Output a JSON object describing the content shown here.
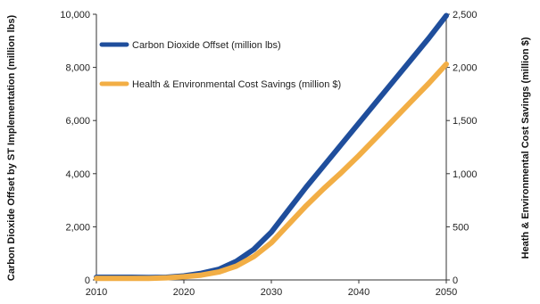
{
  "chart_data": {
    "type": "line",
    "title": "",
    "xlabel": "",
    "ylabel_left": "Carbon Dioxide Offset by ST Implementation (million lbs)",
    "ylabel_right": "Heath & Environmental Cost Savings (million $)",
    "xlim": [
      2010,
      2050
    ],
    "ylim_left": [
      0,
      10000
    ],
    "ylim_right": [
      0,
      2500
    ],
    "x_ticks": [
      "2010",
      "2020",
      "2030",
      "2040",
      "2050"
    ],
    "y_left_ticks": [
      "0",
      "2,000",
      "4,000",
      "6,000",
      "8,000",
      "10,000"
    ],
    "y_right_ticks": [
      "0",
      "500",
      "1,000",
      "1,500",
      "2,000",
      "2,500"
    ],
    "grid": false,
    "legend_position": "top-left",
    "series": [
      {
        "name": "Carbon Dioxide Offset (million lbs)",
        "axis": "left",
        "color": "#1f4e9c",
        "x": [
          2010,
          2012,
          2014,
          2016,
          2018,
          2020,
          2022,
          2024,
          2026,
          2028,
          2030,
          2032,
          2034,
          2036,
          2038,
          2040,
          2042,
          2044,
          2046,
          2048,
          2050
        ],
        "y": [
          100,
          100,
          100,
          90,
          100,
          150,
          250,
          400,
          700,
          1150,
          1800,
          2650,
          3500,
          4300,
          5100,
          5900,
          6700,
          7500,
          8300,
          9100,
          9950
        ]
      },
      {
        "name": "Health & Environmental Cost Savings (million $)",
        "axis": "right",
        "color": "#f2ae45",
        "x": [
          2010,
          2012,
          2014,
          2016,
          2018,
          2020,
          2022,
          2024,
          2026,
          2028,
          2030,
          2032,
          2034,
          2036,
          2038,
          2040,
          2042,
          2044,
          2046,
          2048,
          2050
        ],
        "y": [
          15,
          15,
          15,
          15,
          20,
          30,
          45,
          75,
          130,
          220,
          350,
          525,
          700,
          860,
          1010,
          1170,
          1340,
          1510,
          1680,
          1850,
          2030
        ]
      }
    ]
  }
}
